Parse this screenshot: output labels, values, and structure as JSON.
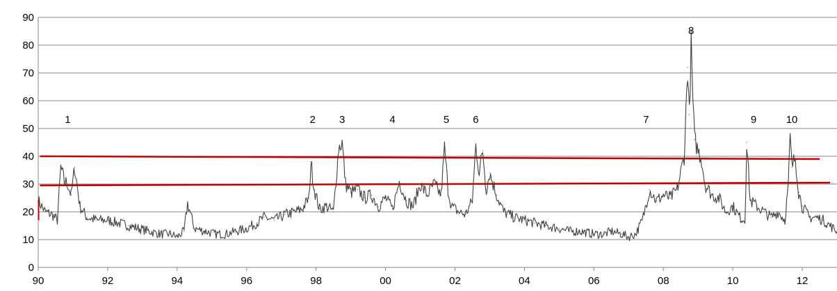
{
  "chart_data": {
    "type": "line",
    "title": "",
    "xlabel": "",
    "ylabel": "",
    "xlim": [
      1990,
      2013
    ],
    "ylim": [
      0,
      90
    ],
    "grid": true,
    "legend": "none",
    "y_ticks": [
      0,
      10,
      20,
      30,
      40,
      50,
      60,
      70,
      80,
      90
    ],
    "x_ticks": [
      {
        "value": 1990,
        "label": "90"
      },
      {
        "value": 1992,
        "label": "92"
      },
      {
        "value": 1994,
        "label": "94"
      },
      {
        "value": 1996,
        "label": "96"
      },
      {
        "value": 1998,
        "label": "98"
      },
      {
        "value": 2000,
        "label": "00"
      },
      {
        "value": 2002,
        "label": "02"
      },
      {
        "value": 2004,
        "label": "04"
      },
      {
        "value": 2006,
        "label": "06"
      },
      {
        "value": 2008,
        "label": "08"
      },
      {
        "value": 2010,
        "label": "10"
      },
      {
        "value": 2012,
        "label": "12"
      }
    ],
    "series": [
      {
        "color": "#404040",
        "x": [
          1990.0,
          1990.2,
          1990.4,
          1990.55,
          1990.65,
          1990.75,
          1990.85,
          1990.95,
          1991.05,
          1991.2,
          1991.4,
          1991.7,
          1992.0,
          1992.3,
          1992.6,
          1992.9,
          1993.2,
          1993.5,
          1993.8,
          1994.0,
          1994.2,
          1994.3,
          1994.5,
          1994.8,
          1995.1,
          1995.4,
          1995.7,
          1996.0,
          1996.3,
          1996.5,
          1996.8,
          1997.1,
          1997.4,
          1997.6,
          1997.8,
          1997.85,
          1997.95,
          1998.1,
          1998.3,
          1998.5,
          1998.65,
          1998.75,
          1998.85,
          1999.0,
          1999.2,
          1999.4,
          1999.6,
          1999.8,
          2000.0,
          2000.2,
          2000.4,
          2000.6,
          2000.8,
          2001.0,
          2001.2,
          2001.4,
          2001.6,
          2001.7,
          2001.8,
          2001.9,
          2002.1,
          2002.3,
          2002.5,
          2002.6,
          2002.7,
          2002.8,
          2002.9,
          2003.0,
          2003.2,
          2003.4,
          2003.7,
          2004.0,
          2004.3,
          2004.6,
          2005.0,
          2005.3,
          2005.6,
          2006.0,
          2006.3,
          2006.5,
          2006.8,
          2007.0,
          2007.2,
          2007.4,
          2007.6,
          2007.8,
          2008.0,
          2008.2,
          2008.4,
          2008.6,
          2008.7,
          2008.75,
          2008.8,
          2008.85,
          2008.9,
          2009.0,
          2009.1,
          2009.2,
          2009.4,
          2009.6,
          2009.8,
          2010.0,
          2010.2,
          2010.35,
          2010.4,
          2010.5,
          2010.7,
          2010.9,
          2011.1,
          2011.3,
          2011.5,
          2011.6,
          2011.65,
          2011.7,
          2011.8,
          2011.9,
          2012.0,
          2012.2,
          2012.4,
          2012.6,
          2012.8,
          2013.0
        ],
        "y": [
          24,
          20,
          19,
          17,
          36,
          31,
          30,
          26,
          36,
          22,
          18,
          17,
          17,
          16,
          15,
          14,
          13,
          12,
          12,
          11,
          13,
          23,
          14,
          13,
          12,
          12,
          13,
          14,
          16,
          18,
          17,
          19,
          20,
          21,
          25,
          38,
          28,
          21,
          22,
          20,
          43,
          45,
          30,
          27,
          28,
          25,
          26,
          22,
          25,
          21,
          31,
          24,
          22,
          30,
          26,
          30,
          26,
          43,
          28,
          22,
          20,
          19,
          24,
          44,
          34,
          42,
          28,
          34,
          26,
          20,
          18,
          17,
          16,
          15,
          14,
          13,
          13,
          12,
          12,
          13,
          12,
          11,
          12,
          17,
          28,
          24,
          26,
          25,
          28,
          40,
          72,
          55,
          80,
          60,
          46,
          42,
          39,
          30,
          26,
          25,
          20,
          22,
          18,
          17,
          45,
          24,
          22,
          20,
          18,
          20,
          17,
          30,
          47,
          36,
          40,
          27,
          22,
          18,
          18,
          17,
          15,
          13
        ]
      }
    ],
    "reference_lines": [
      {
        "color": "#c00000",
        "x": [
          1990.05,
          2012.5
        ],
        "y": [
          40,
          39
        ]
      },
      {
        "color": "#c00000",
        "x": [
          1990.05,
          2012.8
        ],
        "y": [
          29.5,
          30.5
        ]
      }
    ],
    "annotations": [
      {
        "label": "1",
        "x": 1990.85,
        "y": 52
      },
      {
        "label": "2",
        "x": 1997.9,
        "y": 52
      },
      {
        "label": "3",
        "x": 1998.75,
        "y": 52
      },
      {
        "label": "4",
        "x": 2000.2,
        "y": 52
      },
      {
        "label": "5",
        "x": 2001.75,
        "y": 52
      },
      {
        "label": "6",
        "x": 2002.6,
        "y": 52
      },
      {
        "label": "7",
        "x": 2007.5,
        "y": 52
      },
      {
        "label": "8",
        "x": 2008.8,
        "y": 84
      },
      {
        "label": "9",
        "x": 2010.6,
        "y": 52
      },
      {
        "label": "10",
        "x": 2011.7,
        "y": 52
      }
    ]
  }
}
